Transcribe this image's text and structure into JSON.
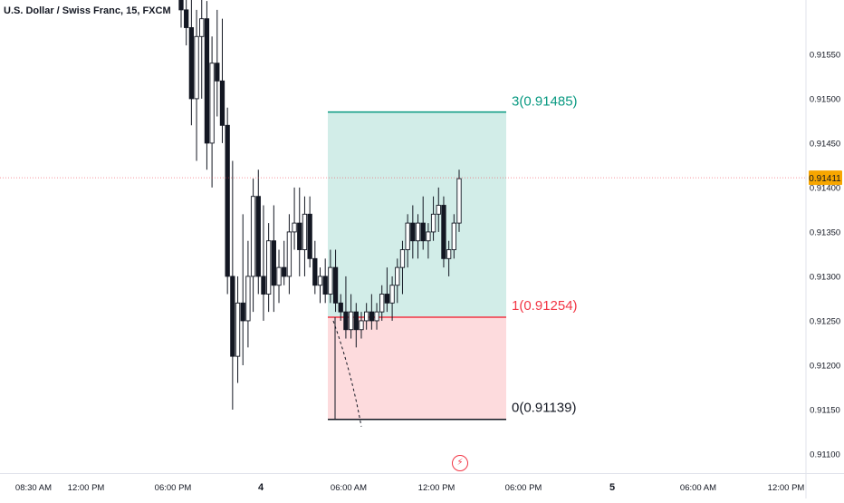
{
  "header": {
    "title": "U.S. Dollar / Swiss Franc, 15, FXCM"
  },
  "colors": {
    "up": "#ffffff",
    "down": "#131722",
    "target": "#089981",
    "entry": "#f23645",
    "stop": "#131722",
    "price_label": "#f7a600"
  },
  "icons": {
    "events": "lightning-icon"
  },
  "chart_data": {
    "type": "candlestick",
    "y_axis": {
      "range": [
        0.91082,
        0.91606
      ],
      "ticks": [
        "0.91550",
        "0.91500",
        "0.91450",
        "0.91400",
        "0.91350",
        "0.91300",
        "0.91250",
        "0.91200",
        "0.91150",
        "0.91100"
      ]
    },
    "x_axis": {
      "ticks": [
        "08:30 AM",
        "12:00 PM",
        "06:00 PM",
        "4",
        "06:00 AM",
        "12:00 PM",
        "06:00 PM",
        "5",
        "06:00 AM",
        "12:00 PM"
      ]
    },
    "current_price": {
      "value": 0.91411,
      "label": "0.91411"
    },
    "position": {
      "target": {
        "value": 0.91485,
        "label": "3(0.91485)"
      },
      "entry": {
        "value": 0.91254,
        "label": "1(0.91254)"
      },
      "stop": {
        "value": 0.91139,
        "label": "0(0.91139)"
      }
    },
    "candles": [
      [
        0.9163,
        0.9166,
        0.9158,
        0.916
      ],
      [
        0.916,
        0.9164,
        0.9156,
        0.9158
      ],
      [
        0.9158,
        0.9162,
        0.9147,
        0.915
      ],
      [
        0.915,
        0.916,
        0.9143,
        0.9157
      ],
      [
        0.9157,
        0.9162,
        0.915,
        0.9159
      ],
      [
        0.9159,
        0.9161,
        0.9142,
        0.9145
      ],
      [
        0.9145,
        0.9157,
        0.914,
        0.9154
      ],
      [
        0.9154,
        0.916,
        0.9148,
        0.9152
      ],
      [
        0.9152,
        0.9159,
        0.9145,
        0.9147
      ],
      [
        0.9147,
        0.9149,
        0.9128,
        0.913
      ],
      [
        0.913,
        0.9143,
        0.9115,
        0.9121
      ],
      [
        0.9121,
        0.913,
        0.9118,
        0.9127
      ],
      [
        0.9127,
        0.9137,
        0.912,
        0.9125
      ],
      [
        0.9125,
        0.9134,
        0.9122,
        0.913
      ],
      [
        0.913,
        0.9141,
        0.9126,
        0.9139
      ],
      [
        0.9139,
        0.9142,
        0.9128,
        0.913
      ],
      [
        0.913,
        0.9138,
        0.9125,
        0.9128
      ],
      [
        0.9128,
        0.9136,
        0.9126,
        0.9134
      ],
      [
        0.9134,
        0.9138,
        0.9126,
        0.9129
      ],
      [
        0.9129,
        0.9133,
        0.9127,
        0.9131
      ],
      [
        0.9131,
        0.9134,
        0.9129,
        0.913
      ],
      [
        0.913,
        0.9137,
        0.9128,
        0.9135
      ],
      [
        0.9135,
        0.914,
        0.9133,
        0.9136
      ],
      [
        0.9136,
        0.914,
        0.913,
        0.9133
      ],
      [
        0.9133,
        0.9139,
        0.913,
        0.9137
      ],
      [
        0.9137,
        0.9139,
        0.9131,
        0.9132
      ],
      [
        0.9132,
        0.9134,
        0.9128,
        0.9129
      ],
      [
        0.9129,
        0.9131,
        0.9127,
        0.913
      ],
      [
        0.913,
        0.9132,
        0.9127,
        0.9128
      ],
      [
        0.9128,
        0.9133,
        0.9127,
        0.9131
      ],
      [
        0.9131,
        0.9133,
        0.9126,
        0.9127
      ],
      [
        0.9127,
        0.9128,
        0.9125,
        0.9126
      ],
      [
        0.9126,
        0.913,
        0.9123,
        0.9124
      ],
      [
        0.9124,
        0.9128,
        0.9123,
        0.9126
      ],
      [
        0.9126,
        0.9127,
        0.9122,
        0.9124
      ],
      [
        0.9124,
        0.9126,
        0.9123,
        0.9125
      ],
      [
        0.9125,
        0.9127,
        0.9124,
        0.9126
      ],
      [
        0.9126,
        0.9128,
        0.9124,
        0.9125
      ],
      [
        0.9125,
        0.9127,
        0.9124,
        0.9126
      ],
      [
        0.9126,
        0.9129,
        0.9125,
        0.9128
      ],
      [
        0.9128,
        0.9131,
        0.9126,
        0.9127
      ],
      [
        0.9127,
        0.913,
        0.9125,
        0.9129
      ],
      [
        0.9129,
        0.9132,
        0.9127,
        0.9131
      ],
      [
        0.9131,
        0.9134,
        0.9128,
        0.9133
      ],
      [
        0.9133,
        0.9137,
        0.9131,
        0.9136
      ],
      [
        0.9136,
        0.9138,
        0.9132,
        0.9134
      ],
      [
        0.9134,
        0.9137,
        0.9132,
        0.9136
      ],
      [
        0.9136,
        0.9139,
        0.9133,
        0.9134
      ],
      [
        0.9134,
        0.9136,
        0.9132,
        0.9135
      ],
      [
        0.9135,
        0.9139,
        0.9134,
        0.9137
      ],
      [
        0.9137,
        0.914,
        0.9135,
        0.9138
      ],
      [
        0.9138,
        0.9139,
        0.9131,
        0.9132
      ],
      [
        0.9132,
        0.9134,
        0.913,
        0.9133
      ],
      [
        0.9133,
        0.9137,
        0.9132,
        0.9136
      ],
      [
        0.9136,
        0.9142,
        0.9135,
        0.9141
      ]
    ]
  }
}
